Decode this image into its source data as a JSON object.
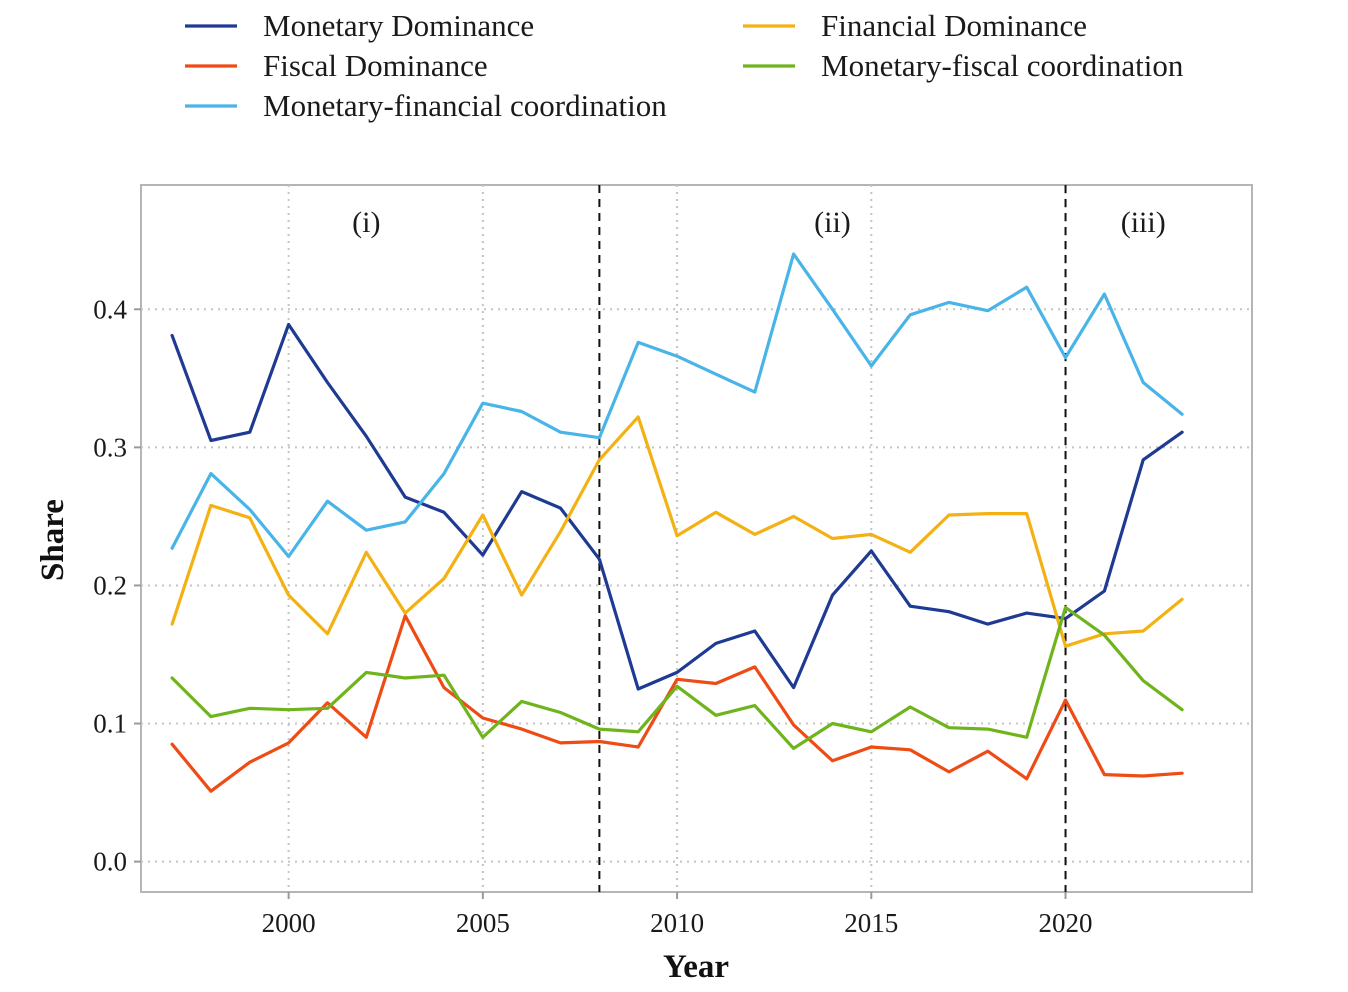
{
  "chart_data": {
    "type": "line",
    "xlabel": "Year",
    "ylabel": "Share",
    "xlim": [
      1996.2,
      2024.8
    ],
    "ylim": [
      -0.022,
      0.49
    ],
    "x_ticks": [
      2000,
      2005,
      2010,
      2015,
      2020
    ],
    "y_ticks": [
      0.0,
      0.1,
      0.2,
      0.3,
      0.4
    ],
    "y_tick_labels": [
      "0.0",
      "0.1",
      "0.2",
      "0.3",
      "0.4"
    ],
    "grid": "dotted",
    "legend_position": "top",
    "breaks": [
      2008,
      2020
    ],
    "periods": [
      {
        "label": "(i)",
        "x": 2002
      },
      {
        "label": "(ii)",
        "x": 2014
      },
      {
        "label": "(iii)",
        "x": 2022
      }
    ],
    "x": [
      1997,
      1998,
      1999,
      2000,
      2001,
      2002,
      2003,
      2004,
      2005,
      2006,
      2007,
      2008,
      2009,
      2010,
      2011,
      2012,
      2013,
      2014,
      2015,
      2016,
      2017,
      2018,
      2019,
      2020,
      2021,
      2022,
      2023
    ],
    "series": [
      {
        "name": "Monetary Dominance",
        "color": "#1f3a93",
        "values": [
          0.381,
          0.305,
          0.311,
          0.389,
          0.347,
          0.308,
          0.264,
          0.253,
          0.222,
          0.268,
          0.256,
          0.219,
          0.125,
          0.137,
          0.158,
          0.167,
          0.126,
          0.193,
          0.225,
          0.185,
          0.181,
          0.172,
          0.18,
          0.176,
          0.196,
          0.291,
          0.311
        ]
      },
      {
        "name": "Fiscal Dominance",
        "color": "#ee4b15",
        "values": [
          0.085,
          0.051,
          0.072,
          0.086,
          0.115,
          0.09,
          0.178,
          0.126,
          0.104,
          0.096,
          0.086,
          0.087,
          0.083,
          0.132,
          0.129,
          0.141,
          0.099,
          0.073,
          0.083,
          0.081,
          0.065,
          0.08,
          0.06,
          0.117,
          0.063,
          0.062,
          0.064
        ]
      },
      {
        "name": "Monetary-financial coordination",
        "color": "#48b4e8",
        "values": [
          0.227,
          0.281,
          0.255,
          0.221,
          0.261,
          0.24,
          0.246,
          0.281,
          0.332,
          0.326,
          0.311,
          0.307,
          0.376,
          0.366,
          0.353,
          0.34,
          0.44,
          0.4,
          0.359,
          0.396,
          0.405,
          0.399,
          0.416,
          0.365,
          0.411,
          0.347,
          0.324
        ]
      },
      {
        "name": "Financial Dominance",
        "color": "#f4b114",
        "values": [
          0.172,
          0.258,
          0.249,
          0.193,
          0.165,
          0.224,
          0.18,
          0.205,
          0.251,
          0.193,
          0.239,
          0.291,
          0.322,
          0.236,
          0.253,
          0.237,
          0.25,
          0.234,
          0.237,
          0.224,
          0.251,
          0.252,
          0.252,
          0.156,
          0.165,
          0.167,
          0.19
        ]
      },
      {
        "name": "Monetary-fiscal coordination",
        "color": "#6fb41c",
        "values": [
          0.133,
          0.105,
          0.111,
          0.11,
          0.111,
          0.137,
          0.133,
          0.135,
          0.09,
          0.116,
          0.108,
          0.096,
          0.094,
          0.127,
          0.106,
          0.113,
          0.082,
          0.1,
          0.094,
          0.112,
          0.097,
          0.096,
          0.09,
          0.184,
          0.164,
          0.131,
          0.11
        ]
      }
    ]
  }
}
